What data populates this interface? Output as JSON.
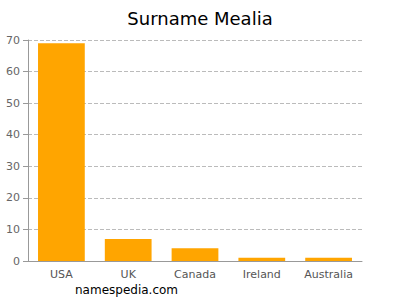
{
  "chart_data": {
    "type": "bar",
    "title": "Surname Mealia",
    "categories": [
      "USA",
      "UK",
      "Canada",
      "Ireland",
      "Australia"
    ],
    "values": [
      69,
      7,
      4,
      1,
      1
    ],
    "color": "#ffa500",
    "ylim": [
      0,
      70
    ],
    "yticks": [
      0,
      10,
      20,
      30,
      40,
      50,
      60,
      70
    ],
    "grid": true,
    "annotations": [
      "namespedia.com"
    ]
  }
}
